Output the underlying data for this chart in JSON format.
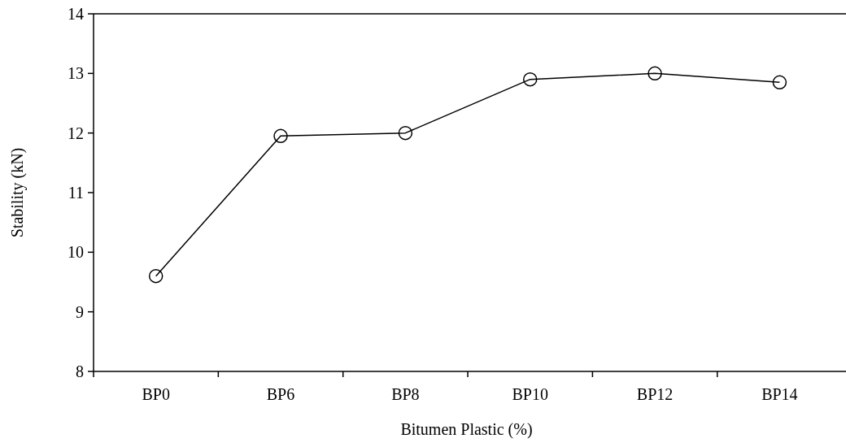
{
  "chart_data": {
    "type": "line",
    "xlabel": "Bitumen Plastic (%)",
    "ylabel": "Stability (kN)",
    "categories": [
      "BP0",
      "BP6",
      "BP8",
      "BP10",
      "BP12",
      "BP14"
    ],
    "series": [
      {
        "color": "#000000",
        "values": [
          9.6,
          11.95,
          12.0,
          12.9,
          13.0,
          12.85
        ]
      }
    ],
    "ylim": [
      8,
      14
    ],
    "yticks": [
      8,
      9,
      10,
      11,
      12,
      13,
      14
    ],
    "marker": "circle",
    "line_style": "solid"
  }
}
